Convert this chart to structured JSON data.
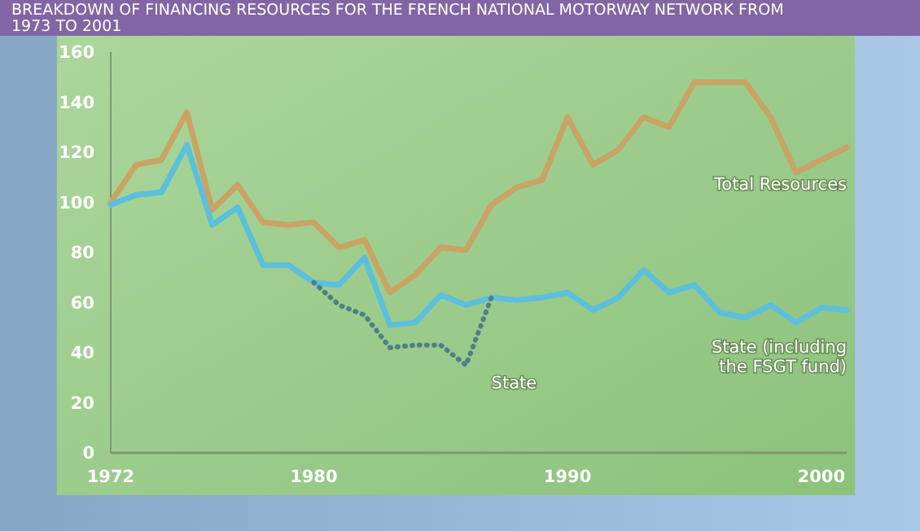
{
  "chart_data": {
    "type": "line",
    "title": "BREAKDOWN OF FINANCING RESOURCES FOR THE FRENCH NATIONAL MOTORWAY NETWORK FROM 1973 TO 2001",
    "x": [
      1972,
      1973,
      1974,
      1975,
      1976,
      1977,
      1978,
      1979,
      1980,
      1981,
      1982,
      1983,
      1984,
      1985,
      1986,
      1987,
      1988,
      1989,
      1990,
      1991,
      1992,
      1993,
      1994,
      1995,
      1996,
      1997,
      1998,
      1999,
      2000,
      2001
    ],
    "xlim": [
      1972,
      2001
    ],
    "xticks": [
      1972,
      1980,
      1990,
      2000
    ],
    "ylim": [
      0,
      160
    ],
    "yticks": [
      0,
      20,
      40,
      60,
      80,
      100,
      120,
      140,
      160
    ],
    "grid": false,
    "series": [
      {
        "name": "Total Resources",
        "color": "#c9a464",
        "values": [
          100,
          115,
          117,
          136,
          97,
          107,
          92,
          91,
          92,
          82,
          85,
          64,
          71,
          82,
          81,
          99,
          106,
          109,
          134,
          115,
          121,
          134,
          130,
          148,
          148,
          148,
          134,
          112,
          117,
          122
        ]
      },
      {
        "name": "State (including the FSGT fund)",
        "color": "#5cc0dc",
        "values": [
          99,
          103,
          104,
          123,
          91,
          98,
          75,
          75,
          68,
          67,
          78,
          51,
          52,
          63,
          59,
          62,
          61,
          62,
          64,
          57,
          62,
          73,
          64,
          67,
          56,
          54,
          59,
          52,
          58,
          57
        ]
      },
      {
        "name": "State",
        "color": "#4f7f86",
        "line_style": "dotted",
        "values": [
          null,
          null,
          null,
          null,
          null,
          null,
          null,
          null,
          68,
          59,
          55,
          42,
          43,
          43,
          35,
          62,
          null,
          null,
          null,
          null,
          null,
          null,
          null,
          null,
          null,
          null,
          null,
          null,
          null,
          null
        ]
      }
    ]
  }
}
